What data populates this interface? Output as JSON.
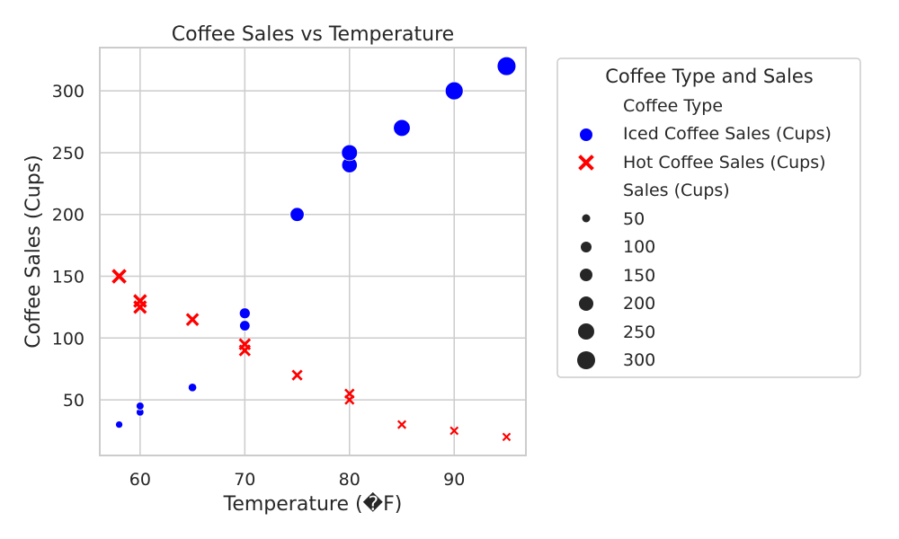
{
  "chart_data": {
    "type": "scatter",
    "title": "Coffee Sales vs Temperature",
    "xlabel": "Temperature (�F)",
    "ylabel": "Coffee Sales (Cups)",
    "xlim": [
      56.15,
      96.85
    ],
    "ylim": [
      5.0,
      335.0
    ],
    "xticks": [
      60,
      70,
      80,
      90
    ],
    "yticks": [
      50,
      100,
      150,
      200,
      250,
      300
    ],
    "grid": true,
    "legend_placement": "outside-right",
    "size_scale": "point size encodes Sales (Cups)",
    "series": [
      {
        "name": "Iced Coffee Sales (Cups)",
        "color": "#0000ff",
        "marker": "circle",
        "points": [
          {
            "x": 58,
            "y": 30
          },
          {
            "x": 60,
            "y": 40
          },
          {
            "x": 60,
            "y": 45
          },
          {
            "x": 65,
            "y": 60
          },
          {
            "x": 70,
            "y": 110
          },
          {
            "x": 70,
            "y": 120
          },
          {
            "x": 75,
            "y": 200
          },
          {
            "x": 80,
            "y": 240
          },
          {
            "x": 80,
            "y": 250
          },
          {
            "x": 85,
            "y": 270
          },
          {
            "x": 90,
            "y": 300
          },
          {
            "x": 95,
            "y": 320
          }
        ]
      },
      {
        "name": "Hot Coffee Sales (Cups)",
        "color": "#ff0000",
        "marker": "x",
        "points": [
          {
            "x": 58,
            "y": 150
          },
          {
            "x": 60,
            "y": 125
          },
          {
            "x": 60,
            "y": 130
          },
          {
            "x": 65,
            "y": 115
          },
          {
            "x": 70,
            "y": 90
          },
          {
            "x": 70,
            "y": 95
          },
          {
            "x": 75,
            "y": 70
          },
          {
            "x": 80,
            "y": 50
          },
          {
            "x": 80,
            "y": 55
          },
          {
            "x": 85,
            "y": 30
          },
          {
            "x": 90,
            "y": 25
          },
          {
            "x": 95,
            "y": 20
          }
        ]
      }
    ],
    "legend": {
      "title": "Coffee Type and Sales",
      "hue_title": "Coffee Type",
      "size_title": "Sales (Cups)",
      "size_values": [
        "50",
        "100",
        "150",
        "200",
        "250",
        "300"
      ]
    }
  }
}
